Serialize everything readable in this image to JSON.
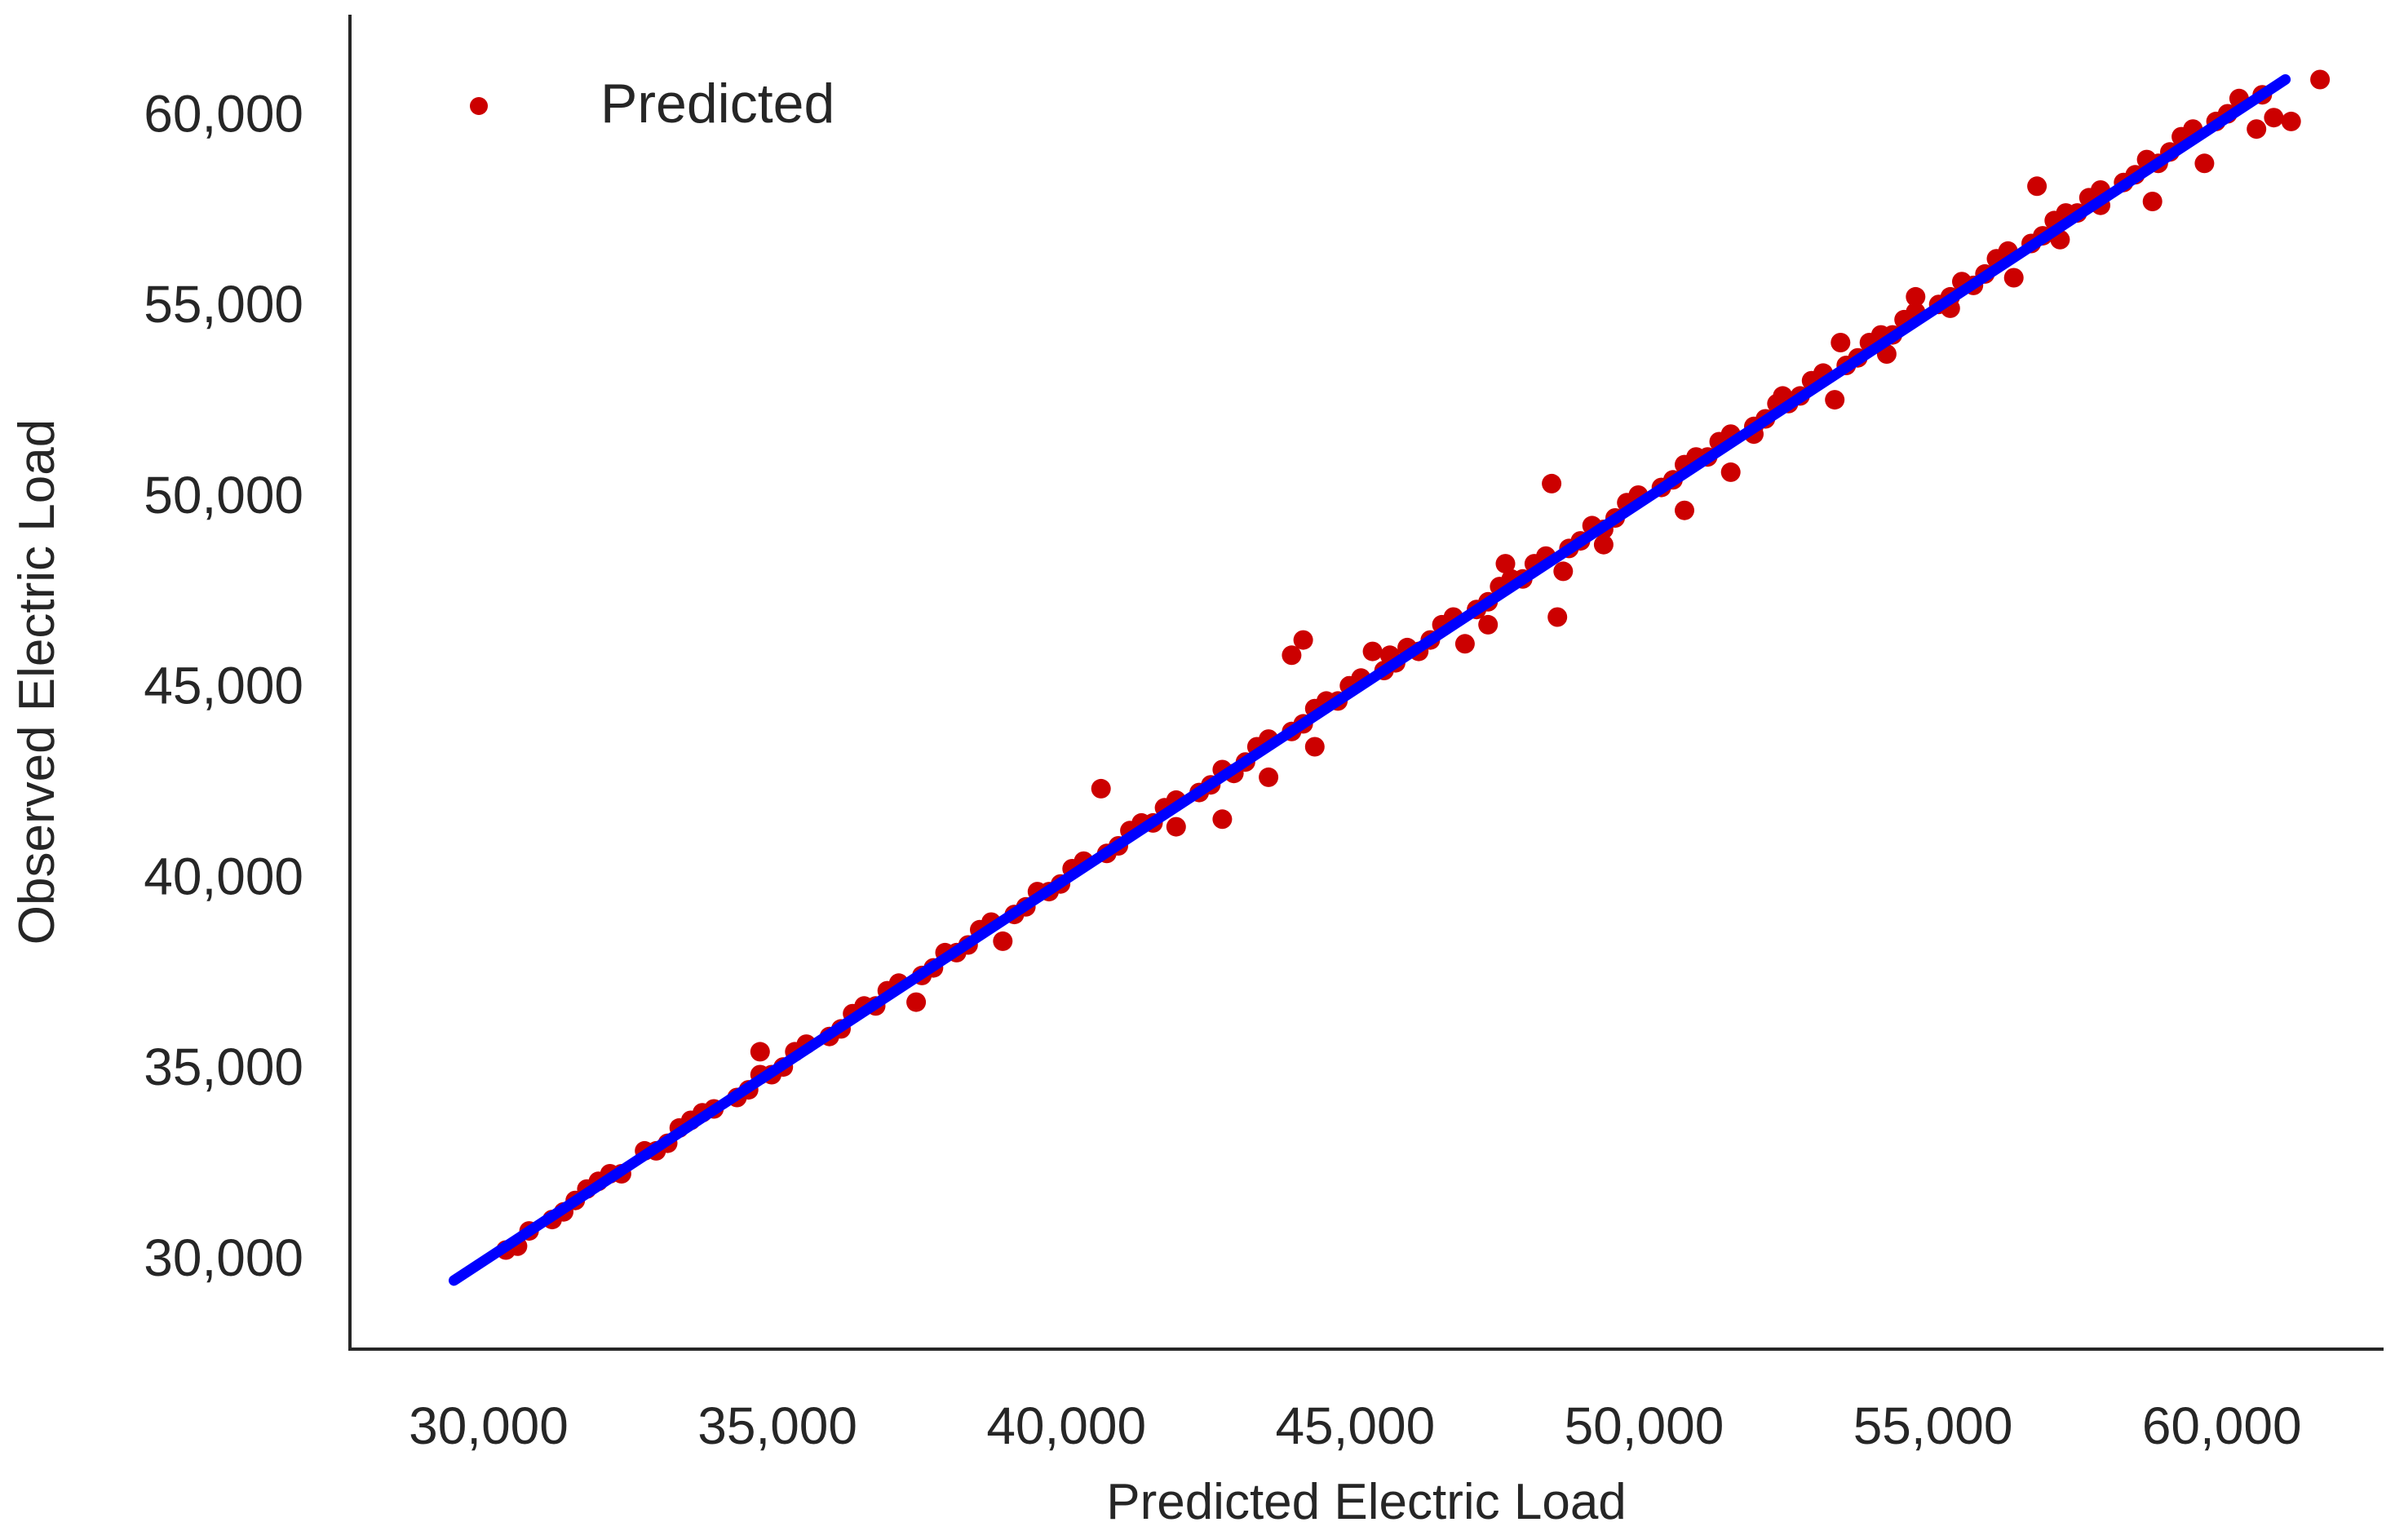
{
  "chart_data": {
    "type": "scatter",
    "title": "",
    "xlabel": "Predicted Electric Load",
    "ylabel": "Observed Electric Load",
    "xlim": [
      27600,
      62800
    ],
    "ylim": [
      27600,
      62600
    ],
    "x_ticks": [
      30000,
      35000,
      40000,
      45000,
      50000,
      55000,
      60000
    ],
    "y_ticks": [
      30000,
      35000,
      40000,
      45000,
      50000,
      55000,
      60000
    ],
    "x_tick_labels": [
      "30,000",
      "35,000",
      "40,000",
      "45,000",
      "50,000",
      "55,000",
      "60,000"
    ],
    "y_tick_labels": [
      "30,000",
      "35,000",
      "40,000",
      "45,000",
      "50,000",
      "55,000",
      "60,000"
    ],
    "grid": false,
    "legend": {
      "placement": "top-left",
      "entries": [
        "Predicted"
      ]
    },
    "colors": {
      "points": "#cc0000",
      "fit_line": "#0000ff",
      "axes": "#262626"
    },
    "series": [
      {
        "name": "Predicted",
        "kind": "scatter",
        "x": [
          30300,
          30700,
          31100,
          31500,
          31900,
          32300,
          32700,
          33100,
          33500,
          33900,
          34300,
          34700,
          35100,
          35500,
          35900,
          36300,
          36700,
          37100,
          37500,
          37900,
          38300,
          38700,
          39100,
          39500,
          39900,
          40300,
          40700,
          41100,
          41500,
          41900,
          42300,
          42700,
          43100,
          43500,
          43900,
          44300,
          44700,
          45100,
          45500,
          45900,
          46300,
          46700,
          47100,
          47500,
          47900,
          48300,
          48700,
          49100,
          49500,
          49900,
          50300,
          50700,
          51100,
          51500,
          51900,
          52300,
          52700,
          53100,
          53500,
          53900,
          54300,
          54700,
          55100,
          55500,
          55900,
          56300,
          56700,
          57100,
          57500,
          57900,
          58300,
          58700,
          59100,
          59500,
          59900,
          60300,
          60700,
          30500,
          31300,
          32100,
          32900,
          33700,
          34500,
          35300,
          36100,
          36900,
          37700,
          38500,
          39300,
          40100,
          40900,
          41700,
          42500,
          43300,
          44100,
          44900,
          45700,
          46500,
          47300,
          48100,
          48900,
          49700,
          50500,
          51300,
          52100,
          52900,
          53700,
          54500,
          55300,
          56100,
          56900,
          57700,
          58500,
          59300,
          60100,
          31700,
          33300,
          34900,
          36500,
          38100,
          39700,
          41300,
          42900,
          44500,
          46100,
          47700,
          49300,
          50900,
          52500,
          54100,
          55700,
          57300,
          58900,
          41900,
          42700,
          43500,
          44300,
          43900,
          45300,
          44100,
          46900,
          47600,
          48500,
          49300,
          50700,
          51500,
          52400,
          53300,
          40600,
          53400,
          54200,
          54700,
          56400,
          57200,
          57900,
          58800,
          59700,
          60600,
          61200,
          60900,
          61700,
          55300,
          56800,
          48600,
          48400,
          34700,
          37400,
          38900,
          51900,
          47300,
          45600
        ],
        "y": [
          30200,
          30700,
          31000,
          31500,
          32000,
          32200,
          32800,
          33000,
          33600,
          33900,
          34200,
          34800,
          35000,
          35600,
          35800,
          36400,
          36600,
          37200,
          37400,
          38000,
          38200,
          38800,
          39000,
          39600,
          39800,
          40400,
          40600,
          41200,
          41400,
          42000,
          42200,
          42800,
          43000,
          43600,
          43800,
          44400,
          44600,
          45200,
          45400,
          46000,
          46200,
          46800,
          47000,
          47600,
          47800,
          48400,
          48600,
          49200,
          49400,
          50000,
          50200,
          50800,
          51000,
          51600,
          51800,
          52400,
          52600,
          53200,
          53400,
          54000,
          54200,
          54800,
          55000,
          55600,
          55800,
          56400,
          56600,
          57200,
          57400,
          58000,
          58200,
          58800,
          59000,
          59600,
          59800,
          60400,
          60500,
          30300,
          31200,
          32200,
          32800,
          33800,
          34400,
          35400,
          36000,
          37000,
          37600,
          38600,
          39200,
          40200,
          40800,
          41800,
          42400,
          43400,
          44000,
          45000,
          45600,
          46600,
          47200,
          48200,
          48800,
          49800,
          50400,
          51400,
          52000,
          53000,
          53600,
          54600,
          55200,
          56200,
          56800,
          57800,
          58400,
          59400,
          60000,
          31800,
          33400,
          34800,
          36600,
          38000,
          39600,
          41400,
          42700,
          44600,
          45900,
          47800,
          49100,
          51000,
          52400,
          54200,
          55500,
          57400,
          58700,
          41300,
          41500,
          42600,
          43400,
          45800,
          45900,
          46200,
          46100,
          48200,
          46800,
          48700,
          49600,
          50600,
          52600,
          52500,
          42300,
          54000,
          53700,
          55200,
          55700,
          56700,
          57600,
          57700,
          58700,
          59600,
          59800,
          59900,
          60900,
          54900,
          58100,
          48000,
          50300,
          35400,
          36700,
          38300,
          51600,
          46600,
          45800
        ]
      },
      {
        "name": "",
        "kind": "line",
        "x": [
          29400,
          61100
        ],
        "y": [
          29400,
          60900
        ]
      }
    ]
  }
}
